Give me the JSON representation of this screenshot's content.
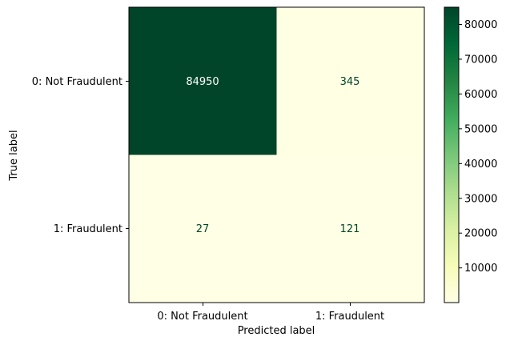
{
  "chart_data": {
    "type": "heatmap",
    "subtype": "confusion_matrix",
    "row_labels": [
      "0: Not Fraudulent",
      "1: Fraudulent"
    ],
    "col_labels": [
      "0: Not Fraudulent",
      "1: Fraudulent"
    ],
    "values": [
      [
        84950,
        345
      ],
      [
        27,
        121
      ]
    ],
    "xlabel": "Predicted label",
    "ylabel": "True label",
    "colormap": "YlGn",
    "color_range": [
      27,
      84950
    ],
    "colorbar": {
      "ticks": [
        10000,
        20000,
        30000,
        40000,
        50000,
        60000,
        70000,
        80000
      ],
      "tick_labels": [
        "10000",
        "20000",
        "30000",
        "40000",
        "50000",
        "60000",
        "70000",
        "80000"
      ]
    },
    "cell_text_colors": {
      "on_dark": "#ffffff",
      "on_light": "#004529"
    }
  }
}
